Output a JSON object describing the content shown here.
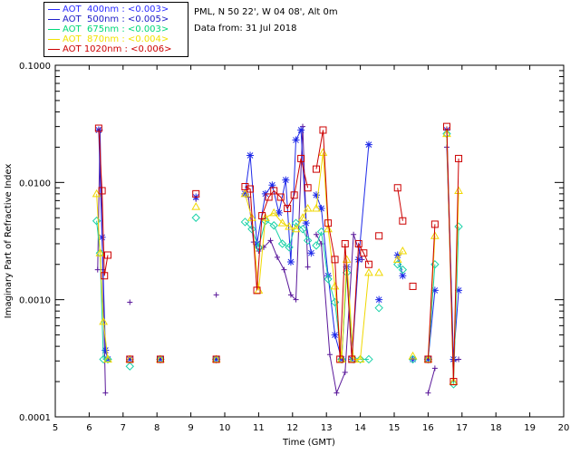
{
  "legend": [
    {
      "label": "AOT  400nm : <0.003>",
      "color": "#2b2bff"
    },
    {
      "label": "AOT  500nm : <0.005>",
      "color": "#2020c8"
    },
    {
      "label": "AOT  675nm : <0.003>",
      "color": "#00d87a"
    },
    {
      "label": "AOT  870nm : <0.004>",
      "color": "#f2e200"
    },
    {
      "label": "AOT 1020nm : <0.006>",
      "color": "#cc0000"
    }
  ],
  "info": {
    "site": "PML, N 50 22', W 04 08', Alt 0m",
    "date": "Data from: 31 Jul 2018"
  },
  "chart_data": {
    "type": "line",
    "xlabel": "Time (GMT)",
    "ylabel": "Imaginary Part of Refractive Index",
    "xlim": [
      5,
      20
    ],
    "ylim": [
      0.0001,
      0.1
    ],
    "yscale": "log",
    "xticks": [
      "5",
      "6",
      "7",
      "8",
      "9",
      "10",
      "11",
      "12",
      "13",
      "14",
      "15",
      "16",
      "17",
      "18",
      "19",
      "20"
    ],
    "yticks": [
      "0.0001",
      "0.0010",
      "0.0100",
      "0.1000"
    ],
    "grid": false,
    "legend_position": "top-left",
    "series": [
      {
        "name": "AOT  400nm : <0.003>",
        "color": "#5a189a",
        "marker": "plus",
        "segments": [
          [
            [
              6.25,
              0.0018
            ],
            [
              6.32,
              0.028
            ],
            [
              6.4,
              0.0018
            ],
            [
              6.48,
              0.00016
            ]
          ],
          [
            [
              7.2,
              0.00095
            ]
          ],
          [
            [
              8.1,
              0.00031
            ]
          ],
          [
            [
              9.15,
              0.0072
            ]
          ],
          [
            [
              9.75,
              0.0011
            ]
          ],
          [
            [
              10.7,
              0.0075
            ],
            [
              10.85,
              0.0031
            ],
            [
              11.0,
              0.0026
            ],
            [
              11.15,
              0.0028
            ],
            [
              11.35,
              0.0032
            ],
            [
              11.55,
              0.0023
            ],
            [
              11.75,
              0.0018
            ],
            [
              11.95,
              0.0011
            ],
            [
              12.1,
              0.001
            ],
            [
              12.3,
              0.03
            ],
            [
              12.45,
              0.0019
            ]
          ],
          [
            [
              12.7,
              0.0036
            ],
            [
              12.85,
              0.003
            ],
            [
              13.1,
              0.00034
            ],
            [
              13.3,
              0.00016
            ],
            [
              13.55,
              0.00024
            ],
            [
              13.8,
              0.0036
            ],
            [
              14.05,
              0.0022
            ]
          ],
          [
            [
              16.0,
              0.00016
            ],
            [
              16.2,
              0.00026
            ]
          ],
          [
            [
              16.55,
              0.02
            ],
            [
              16.75,
              0.0003
            ],
            [
              16.9,
              0.00031
            ]
          ]
        ]
      },
      {
        "name": "AOT  500nm : <0.005>",
        "color": "#1f2ae8",
        "marker": "asterisk",
        "segments": [
          [
            [
              6.28,
              0.028
            ],
            [
              6.38,
              0.0034
            ],
            [
              6.48,
              0.00037
            ],
            [
              6.55,
              0.00031
            ]
          ],
          [
            [
              7.2,
              0.00031
            ]
          ],
          [
            [
              8.1,
              0.00031
            ]
          ],
          [
            [
              9.15,
              0.0075
            ]
          ],
          [
            [
              9.75,
              0.00031
            ]
          ],
          [
            [
              10.6,
              0.008
            ],
            [
              10.75,
              0.017
            ],
            [
              10.95,
              0.003
            ],
            [
              11.2,
              0.008
            ],
            [
              11.4,
              0.0095
            ],
            [
              11.6,
              0.0055
            ],
            [
              11.8,
              0.0105
            ],
            [
              11.95,
              0.0021
            ],
            [
              12.1,
              0.023
            ],
            [
              12.25,
              0.028
            ],
            [
              12.4,
              0.0045
            ],
            [
              12.55,
              0.0025
            ]
          ],
          [
            [
              12.7,
              0.0078
            ],
            [
              12.85,
              0.006
            ],
            [
              13.05,
              0.0016
            ],
            [
              13.25,
              0.0005
            ],
            [
              13.45,
              0.00031
            ],
            [
              13.6,
              0.0019
            ],
            [
              13.75,
              0.00031
            ],
            [
              13.95,
              0.0022
            ],
            [
              14.25,
              0.021
            ]
          ],
          [
            [
              14.55,
              0.001
            ]
          ],
          [
            [
              15.1,
              0.0024
            ],
            [
              15.25,
              0.0016
            ]
          ],
          [
            [
              15.55,
              0.00031
            ]
          ],
          [
            [
              16.0,
              0.00031
            ],
            [
              16.2,
              0.0012
            ]
          ],
          [
            [
              16.55,
              0.028
            ],
            [
              16.75,
              0.00031
            ],
            [
              16.9,
              0.0012
            ]
          ]
        ]
      },
      {
        "name": "AOT  675nm : <0.003>",
        "color": "#1ad2a8",
        "marker": "diamond",
        "segments": [
          [
            [
              6.22,
              0.0047
            ],
            [
              6.32,
              0.0025
            ],
            [
              6.42,
              0.00031
            ],
            [
              6.55,
              0.00031
            ]
          ],
          [
            [
              7.2,
              0.00027
            ]
          ],
          [
            [
              8.1,
              0.00031
            ]
          ],
          [
            [
              9.15,
              0.005
            ]
          ],
          [
            [
              9.75,
              0.00031
            ]
          ],
          [
            [
              10.6,
              0.0046
            ],
            [
              10.8,
              0.004
            ],
            [
              11.0,
              0.0028
            ],
            [
              11.2,
              0.0047
            ],
            [
              11.45,
              0.0043
            ],
            [
              11.7,
              0.003
            ],
            [
              11.9,
              0.0028
            ],
            [
              12.1,
              0.0045
            ],
            [
              12.3,
              0.004
            ],
            [
              12.45,
              0.0032
            ]
          ],
          [
            [
              12.7,
              0.0029
            ],
            [
              12.85,
              0.0038
            ],
            [
              13.05,
              0.0015
            ],
            [
              13.25,
              0.00095
            ],
            [
              13.45,
              0.00031
            ],
            [
              13.6,
              0.0017
            ],
            [
              13.8,
              0.00031
            ],
            [
              14.0,
              0.00031
            ],
            [
              14.25,
              0.00031
            ]
          ],
          [
            [
              14.55,
              0.00085
            ]
          ],
          [
            [
              15.1,
              0.002
            ],
            [
              15.25,
              0.0018
            ]
          ],
          [
            [
              15.55,
              0.00031
            ]
          ],
          [
            [
              16.0,
              0.00031
            ],
            [
              16.2,
              0.002
            ]
          ],
          [
            [
              16.55,
              0.026
            ],
            [
              16.75,
              0.00019
            ],
            [
              16.9,
              0.0042
            ]
          ]
        ]
      },
      {
        "name": "AOT  870nm : <0.004>",
        "color": "#f0d800",
        "marker": "triangle",
        "segments": [
          [
            [
              6.22,
              0.008
            ],
            [
              6.32,
              0.0025
            ],
            [
              6.42,
              0.00065
            ],
            [
              6.55,
              0.00031
            ]
          ],
          [
            [
              7.2,
              0.00031
            ]
          ],
          [
            [
              8.1,
              0.00031
            ]
          ],
          [
            [
              9.15,
              0.0062
            ]
          ],
          [
            [
              9.75,
              0.00031
            ]
          ],
          [
            [
              10.6,
              0.008
            ],
            [
              10.8,
              0.005
            ],
            [
              11.0,
              0.0012
            ],
            [
              11.2,
              0.005
            ],
            [
              11.45,
              0.0055
            ],
            [
              11.7,
              0.0045
            ],
            [
              11.9,
              0.0042
            ],
            [
              12.1,
              0.004
            ],
            [
              12.3,
              0.005
            ],
            [
              12.45,
              0.006
            ]
          ],
          [
            [
              12.7,
              0.006
            ],
            [
              12.9,
              0.018
            ],
            [
              13.05,
              0.004
            ],
            [
              13.25,
              0.0013
            ],
            [
              13.45,
              0.00031
            ],
            [
              13.6,
              0.0022
            ],
            [
              13.8,
              0.00031
            ],
            [
              14.0,
              0.00031
            ],
            [
              14.25,
              0.0017
            ]
          ],
          [
            [
              14.55,
              0.0017
            ]
          ],
          [
            [
              15.1,
              0.0022
            ],
            [
              15.25,
              0.0026
            ]
          ],
          [
            [
              15.55,
              0.00033
            ]
          ],
          [
            [
              16.0,
              0.00031
            ],
            [
              16.2,
              0.0035
            ]
          ],
          [
            [
              16.55,
              0.026
            ],
            [
              16.75,
              0.0002
            ],
            [
              16.9,
              0.0085
            ]
          ]
        ]
      },
      {
        "name": "AOT 1020nm : <0.006>",
        "color": "#cc0000",
        "marker": "square",
        "segments": [
          [
            [
              6.28,
              0.029
            ],
            [
              6.38,
              0.0085
            ],
            [
              6.45,
              0.0016
            ],
            [
              6.55,
              0.0024
            ]
          ],
          [
            [
              7.2,
              0.00031
            ]
          ],
          [
            [
              8.1,
              0.00031
            ]
          ],
          [
            [
              9.15,
              0.008
            ]
          ],
          [
            [
              9.75,
              0.00031
            ]
          ],
          [
            [
              10.6,
              0.0092
            ],
            [
              10.75,
              0.0088
            ],
            [
              10.95,
              0.0012
            ],
            [
              11.1,
              0.0052
            ],
            [
              11.3,
              0.0075
            ],
            [
              11.45,
              0.0085
            ],
            [
              11.65,
              0.0075
            ],
            [
              11.85,
              0.006
            ],
            [
              12.05,
              0.0078
            ],
            [
              12.25,
              0.016
            ],
            [
              12.45,
              0.009
            ]
          ],
          [
            [
              12.7,
              0.013
            ],
            [
              12.9,
              0.028
            ],
            [
              13.05,
              0.0045
            ],
            [
              13.25,
              0.0022
            ],
            [
              13.4,
              0.00031
            ],
            [
              13.55,
              0.003
            ],
            [
              13.75,
              0.00031
            ],
            [
              13.95,
              0.003
            ],
            [
              14.1,
              0.0025
            ],
            [
              14.25,
              0.002
            ]
          ],
          [
            [
              14.55,
              0.0035
            ]
          ],
          [
            [
              15.1,
              0.009
            ],
            [
              15.25,
              0.0047
            ]
          ],
          [
            [
              15.55,
              0.0013
            ]
          ],
          [
            [
              16.0,
              0.00031
            ],
            [
              16.2,
              0.0044
            ]
          ],
          [
            [
              16.55,
              0.03
            ],
            [
              16.75,
              0.0002
            ],
            [
              16.9,
              0.016
            ]
          ]
        ]
      }
    ]
  }
}
